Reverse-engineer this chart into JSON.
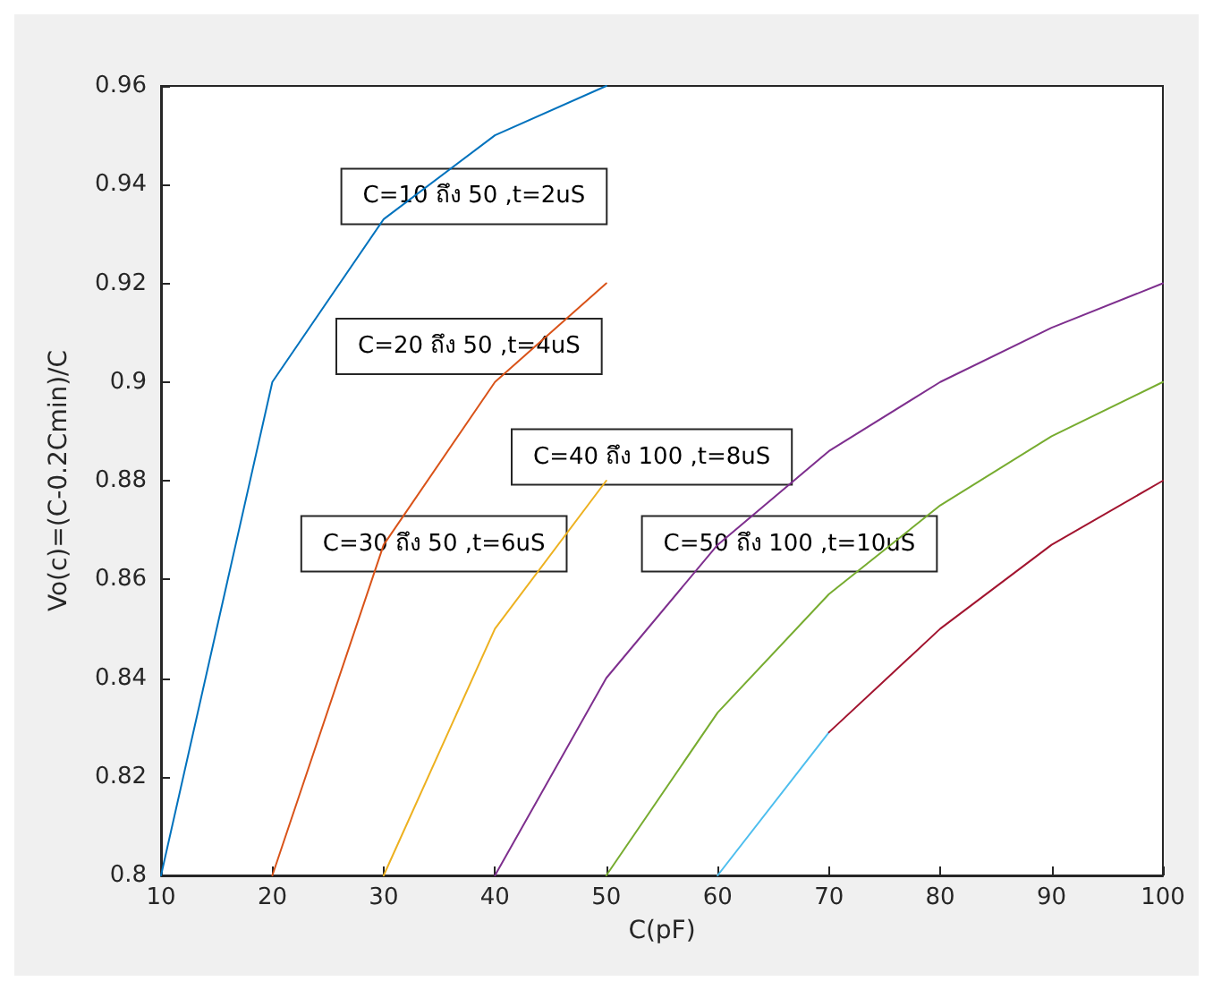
{
  "chart_data": {
    "type": "line",
    "xlabel": "C(pF)",
    "ylabel": "Vo(c)=(C-0.2Cmin)/C",
    "xlim": [
      10,
      100
    ],
    "xticks": [
      10,
      20,
      30,
      40,
      50,
      60,
      70,
      80,
      90,
      100
    ],
    "ylim": [
      0.8,
      0.96
    ],
    "yticks": [
      0.8,
      0.82,
      0.84,
      0.86,
      0.88,
      0.9,
      0.92,
      0.94,
      0.96
    ],
    "grid": false,
    "marker": "none",
    "line_style": "solid",
    "series": [
      {
        "color": "#0072bd",
        "x": [
          10,
          20,
          30,
          40,
          50
        ],
        "values": [
          0.8,
          0.9,
          0.933,
          0.95,
          0.96
        ]
      },
      {
        "color": "#d95319",
        "x": [
          20,
          30,
          40,
          50
        ],
        "values": [
          0.8,
          0.867,
          0.9,
          0.92
        ]
      },
      {
        "color": "#edb120",
        "x": [
          30,
          40,
          50
        ],
        "values": [
          0.8,
          0.85,
          0.88
        ]
      },
      {
        "color": "#7e2f8e",
        "x": [
          40,
          50,
          60,
          70,
          80,
          90,
          100
        ],
        "values": [
          0.8,
          0.84,
          0.867,
          0.886,
          0.9,
          0.911,
          0.92
        ]
      },
      {
        "color": "#77ac30",
        "x": [
          50,
          60,
          70,
          80,
          90,
          100
        ],
        "values": [
          0.8,
          0.833,
          0.857,
          0.875,
          0.889,
          0.9
        ]
      },
      {
        "color": "#4dbeee",
        "x": [
          60,
          70
        ],
        "values": [
          0.8,
          0.829
        ]
      },
      {
        "color": "#a2142f",
        "x": [
          70,
          80,
          90,
          100
        ],
        "values": [
          0.829,
          0.85,
          0.867,
          0.88
        ]
      }
    ],
    "annotations": [
      "C=10 ถึง 50 ,t=2uS",
      "C=20 ถึง 50 ,t=4uS",
      "C=30 ถึง 50 ,t=6uS",
      "C=40 ถึง 100 ,t=8uS",
      "C=50 ถึง 100 ,t=10uS"
    ]
  }
}
